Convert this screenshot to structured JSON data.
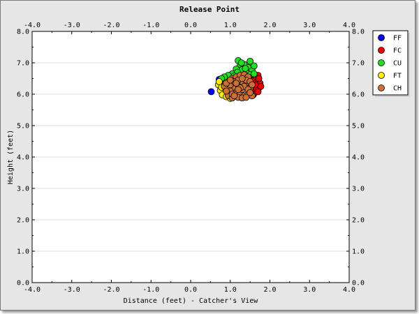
{
  "chart_data": {
    "type": "scatter",
    "title": "Release Point",
    "xlabel": "Distance (feet) - Catcher's View",
    "ylabel": "Height (feet)",
    "xlim": [
      -4.0,
      4.0
    ],
    "ylim": [
      0.0,
      8.0
    ],
    "x_ticks": [
      "-4.0",
      "-3.0",
      "-2.0",
      "-1.0",
      "0.0",
      "1.0",
      "2.0",
      "3.0",
      "4.0"
    ],
    "y_ticks": [
      "0.0",
      "1.0",
      "2.0",
      "3.0",
      "4.0",
      "5.0",
      "6.0",
      "7.0",
      "8.0"
    ],
    "grid": "horizontal",
    "legend_position": "top-right",
    "series": [
      {
        "name": "FF",
        "color": "#0000ee",
        "points": [
          [
            0.52,
            6.08
          ],
          [
            0.72,
            6.47
          ]
        ]
      },
      {
        "name": "FC",
        "color": "#ee0000",
        "points": [
          [
            1.55,
            6.25
          ],
          [
            1.6,
            6.55
          ],
          [
            1.68,
            6.4
          ],
          [
            1.72,
            6.2
          ],
          [
            1.62,
            6.05
          ],
          [
            1.7,
            6.6
          ],
          [
            1.75,
            6.35
          ],
          [
            1.5,
            6.5
          ],
          [
            1.65,
            6.15
          ],
          [
            1.58,
            5.98
          ],
          [
            1.72,
            6.5
          ],
          [
            1.45,
            6.35
          ],
          [
            1.77,
            6.25
          ],
          [
            1.52,
            6.12
          ],
          [
            1.63,
            6.3
          ],
          [
            1.7,
            6.08
          ],
          [
            1.55,
            6.42
          ],
          [
            1.48,
            6.2
          ]
        ]
      },
      {
        "name": "CU",
        "color": "#22dd22",
        "points": [
          [
            1.2,
            7.07
          ],
          [
            1.5,
            7.05
          ],
          [
            1.35,
            6.95
          ],
          [
            1.45,
            6.85
          ],
          [
            1.25,
            6.9
          ],
          [
            1.55,
            6.75
          ],
          [
            1.3,
            6.78
          ],
          [
            1.15,
            6.8
          ],
          [
            1.4,
            6.7
          ],
          [
            1.05,
            6.65
          ],
          [
            0.95,
            6.6
          ],
          [
            0.85,
            6.55
          ],
          [
            1.6,
            6.9
          ],
          [
            1.28,
            7.0
          ],
          [
            1.18,
            6.7
          ],
          [
            1.38,
            6.82
          ],
          [
            1.5,
            6.62
          ],
          [
            0.78,
            6.5
          ],
          [
            1.1,
            6.58
          ],
          [
            1.6,
            6.65
          ]
        ]
      },
      {
        "name": "FT",
        "color": "#ffee00",
        "points": [
          [
            0.7,
            6.3
          ],
          [
            0.75,
            6.12
          ],
          [
            0.8,
            5.98
          ],
          [
            0.85,
            6.2
          ],
          [
            0.9,
            5.92
          ],
          [
            0.95,
            6.05
          ],
          [
            0.72,
            6.4
          ],
          [
            0.88,
            6.35
          ],
          [
            1.0,
            5.87
          ],
          [
            0.78,
            6.22
          ],
          [
            0.95,
            6.25
          ]
        ]
      },
      {
        "name": "CH",
        "color": "#cc7033",
        "points": [
          [
            0.85,
            6.25
          ],
          [
            0.95,
            6.4
          ],
          [
            1.05,
            6.5
          ],
          [
            1.15,
            6.55
          ],
          [
            1.25,
            6.6
          ],
          [
            1.35,
            6.62
          ],
          [
            1.45,
            6.55
          ],
          [
            1.1,
            6.2
          ],
          [
            1.2,
            6.3
          ],
          [
            1.3,
            6.4
          ],
          [
            1.4,
            6.3
          ],
          [
            1.5,
            6.2
          ],
          [
            1.0,
            6.1
          ],
          [
            1.15,
            6.05
          ],
          [
            1.25,
            6.0
          ],
          [
            1.35,
            5.95
          ],
          [
            1.45,
            6.0
          ],
          [
            1.55,
            5.95
          ],
          [
            0.95,
            5.95
          ],
          [
            1.05,
            5.88
          ],
          [
            1.2,
            5.9
          ],
          [
            1.3,
            6.15
          ],
          [
            1.4,
            6.45
          ],
          [
            1.5,
            6.4
          ],
          [
            1.0,
            6.3
          ],
          [
            1.1,
            6.4
          ],
          [
            1.2,
            6.45
          ],
          [
            0.9,
            6.1
          ],
          [
            1.35,
            6.25
          ],
          [
            1.45,
            6.15
          ],
          [
            1.25,
            6.2
          ],
          [
            1.15,
            6.35
          ],
          [
            1.55,
            6.3
          ],
          [
            1.05,
            6.0
          ],
          [
            1.3,
            5.88
          ],
          [
            1.4,
            5.9
          ],
          [
            0.9,
            6.35
          ],
          [
            1.5,
            6.05
          ],
          [
            1.2,
            6.15
          ],
          [
            1.0,
            6.45
          ],
          [
            1.3,
            6.5
          ],
          [
            1.1,
            5.95
          ]
        ]
      }
    ]
  }
}
